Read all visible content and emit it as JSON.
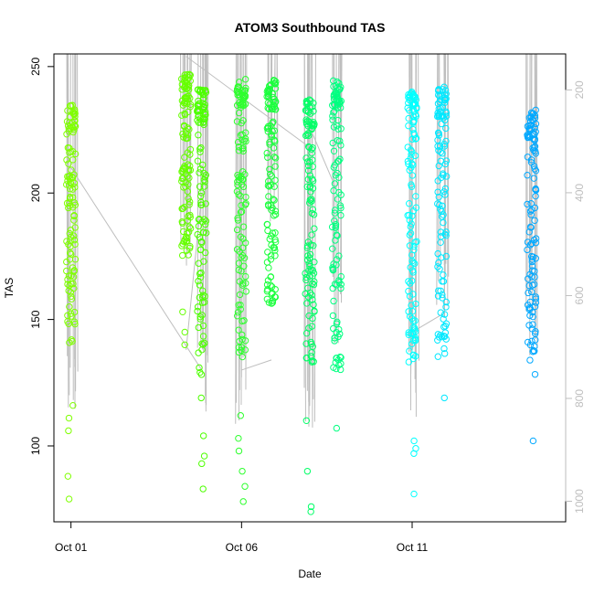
{
  "chart_data": {
    "type": "scatter",
    "title": "ATOM3 Southbound TAS",
    "xlabel": "Date",
    "ylabel": "TAS",
    "x_domain": [
      "Sep 30 12:00",
      "Oct 15 12:00"
    ],
    "ylim": [
      70,
      255
    ],
    "x_ticks": [
      {
        "date": "Oct 01",
        "label": "Oct 01"
      },
      {
        "date": "Oct 06",
        "label": "Oct 06"
      },
      {
        "date": "Oct 11",
        "label": "Oct 11"
      }
    ],
    "y_ticks": [
      100,
      150,
      200,
      250
    ],
    "secondary_axis": {
      "position": "right",
      "reversed": true,
      "range": [
        130,
        1040
      ],
      "ticks": [
        200,
        400,
        600,
        800,
        1000
      ],
      "color": "#bebebe"
    },
    "point_style": "open-circle",
    "trace_color": "#bebebe",
    "groups": [
      {
        "date": "Oct 01 00:00",
        "color": "#7fff00",
        "y_top": 235,
        "y_bottom": 79,
        "dense_low": 140,
        "extra": [
          116,
          111,
          106,
          88,
          79
        ]
      },
      {
        "date": "Oct 04 09:00",
        "color": "#66ff00",
        "y_top": 247,
        "y_bottom": 140,
        "dense_low": 175,
        "extra": [
          153,
          145,
          140
        ]
      },
      {
        "date": "Oct 04 20:00",
        "color": "#4dff00",
        "y_top": 241,
        "y_bottom": 83,
        "dense_low": 128,
        "extra": [
          119,
          104,
          96,
          93,
          83
        ]
      },
      {
        "date": "Oct 06 00:00",
        "color": "#2eff2e",
        "y_top": 245,
        "y_bottom": 78,
        "dense_low": 133,
        "extra": [
          112,
          103,
          98,
          90,
          84,
          78
        ]
      },
      {
        "date": "Oct 06 21:00",
        "color": "#1aff3c",
        "y_top": 245,
        "y_bottom": 152,
        "dense_low": 156,
        "extra": []
      },
      {
        "date": "Oct 08 00:00",
        "color": "#00ff66",
        "y_top": 237,
        "y_bottom": 74,
        "dense_low": 133,
        "extra": [
          110,
          90,
          76,
          74
        ]
      },
      {
        "date": "Oct 08 19:00",
        "color": "#00ff80",
        "y_top": 245,
        "y_bottom": 107,
        "dense_low": 130,
        "extra": [
          107
        ]
      },
      {
        "date": "Oct 11 00:00",
        "color": "#00ffff",
        "y_top": 240,
        "y_bottom": 81,
        "dense_low": 133,
        "extra": [
          102,
          99,
          97,
          81
        ]
      },
      {
        "date": "Oct 11 21:00",
        "color": "#00e8ff",
        "y_top": 242,
        "y_bottom": 119,
        "dense_low": 135,
        "extra": [
          119
        ]
      },
      {
        "date": "Oct 14 12:00",
        "color": "#00a8ff",
        "y_top": 233,
        "y_bottom": 102,
        "dense_low": 128,
        "extra": [
          102
        ]
      }
    ],
    "connector_lines": [
      [
        [
          "Oct 01 00:00",
          210
        ],
        [
          "Oct 04 20:00",
          130
        ]
      ],
      [
        [
          "Oct 04 09:00",
          254
        ],
        [
          "Oct 08 00:00",
          218
        ]
      ],
      [
        [
          "Oct 04 09:00",
          138
        ],
        [
          "Oct 04 20:00",
          200
        ]
      ],
      [
        [
          "Oct 06 00:00",
          130
        ],
        [
          "Oct 06 21:00",
          134
        ]
      ],
      [
        [
          "Oct 11 00:00",
          145
        ],
        [
          "Oct 11 21:00",
          152
        ]
      ],
      [
        [
          "Oct 08 00:00",
          226
        ],
        [
          "Oct 08 19:00",
          201
        ]
      ]
    ]
  }
}
